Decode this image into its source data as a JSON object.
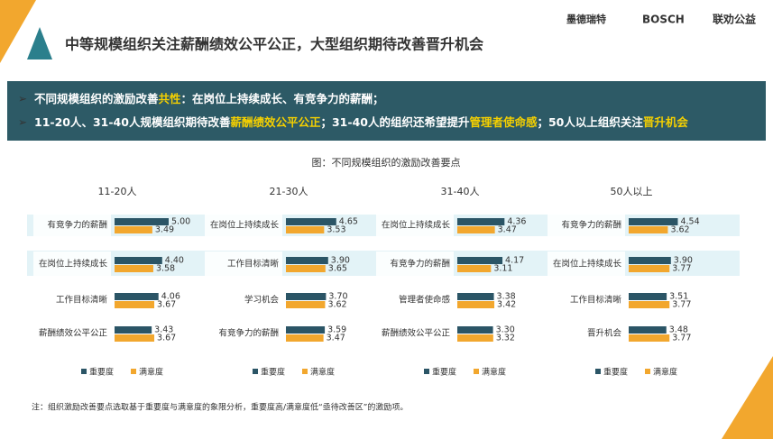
{
  "header": {
    "title": "中等规模组织关注薪酬绩效公平公正，大型组织期待改善晋升机会",
    "logos": [
      "墨德瑞特",
      "BOSCH",
      "联劝公益"
    ]
  },
  "banner": {
    "lines": [
      [
        "不同规模组织的激励改善",
        "共性",
        "：在岗位上持续成长、有竞争力的薪酬；"
      ],
      [
        "11-20人、31-40人规模组织期待改善",
        "薪酬绩效公平公正",
        "；31-40人的组织还希望提升",
        "管理者使命感",
        "；50人以上组织关注",
        "晋升机会"
      ]
    ]
  },
  "figure_caption": "图：不同规模组织的激励改善要点",
  "chart_data": [
    {
      "type": "bar",
      "title": "11-20人",
      "categories": [
        "有竞争力的薪酬",
        "在岗位上持续成长",
        "工作目标清晰",
        "薪酬绩效公平公正"
      ],
      "series": [
        {
          "name": "重要度",
          "color": "#2b5566",
          "values": [
            5.0,
            4.4,
            4.06,
            3.43
          ],
          "value_labels": [
            "5.00",
            "4.40",
            "4.06",
            "3.43"
          ]
        },
        {
          "name": "满意度",
          "color": "#f2a72e",
          "values": [
            3.49,
            3.58,
            3.67,
            3.67
          ],
          "value_labels": [
            "3.49",
            "3.58",
            "3.67",
            "3.67"
          ]
        }
      ]
    },
    {
      "type": "bar",
      "title": "21-30人",
      "categories": [
        "在岗位上持续成长",
        "工作目标清晰",
        "学习机会",
        "有竞争力的薪酬"
      ],
      "series": [
        {
          "name": "重要度",
          "color": "#2b5566",
          "values": [
            4.65,
            3.9,
            3.7,
            3.59
          ],
          "value_labels": [
            "4.65",
            "3.90",
            "3.70",
            "3.59"
          ]
        },
        {
          "name": "满意度",
          "color": "#f2a72e",
          "values": [
            3.53,
            3.65,
            3.62,
            3.47
          ],
          "value_labels": [
            "3.53",
            "3.65",
            "3.62",
            "3.47"
          ]
        }
      ]
    },
    {
      "type": "bar",
      "title": "31-40人",
      "categories": [
        "在岗位上持续成长",
        "有竞争力的薪酬",
        "管理者使命感",
        "薪酬绩效公平公正"
      ],
      "series": [
        {
          "name": "重要度",
          "color": "#2b5566",
          "values": [
            4.36,
            4.17,
            3.38,
            3.3
          ],
          "value_labels": [
            "4.36",
            "4.17",
            "3.38",
            "3.30"
          ]
        },
        {
          "name": "满意度",
          "color": "#f2a72e",
          "values": [
            3.47,
            3.11,
            3.42,
            3.32
          ],
          "value_labels": [
            "3.47",
            "3.11",
            "3.42",
            "3.32"
          ]
        }
      ]
    },
    {
      "type": "bar",
      "title": "50人以上",
      "categories": [
        "有竞争力的薪酬",
        "在岗位上持续成长",
        "工作目标清晰",
        "晋升机会"
      ],
      "series": [
        {
          "name": "重要度",
          "color": "#2b5566",
          "values": [
            4.54,
            3.9,
            3.51,
            3.48
          ],
          "value_labels": [
            "4.54",
            "3.90",
            "3.51",
            "3.48"
          ]
        },
        {
          "name": "满意度",
          "color": "#f2a72e",
          "values": [
            3.62,
            3.77,
            3.77,
            3.77
          ],
          "value_labels": [
            "3.62",
            "3.77",
            "3.77",
            "3.77"
          ]
        }
      ]
    }
  ],
  "footnote": "注：组织激励改善要点选取基于重要度与满意度的象限分析，重要度高/满意度低“亟待改善区”的激励项。"
}
